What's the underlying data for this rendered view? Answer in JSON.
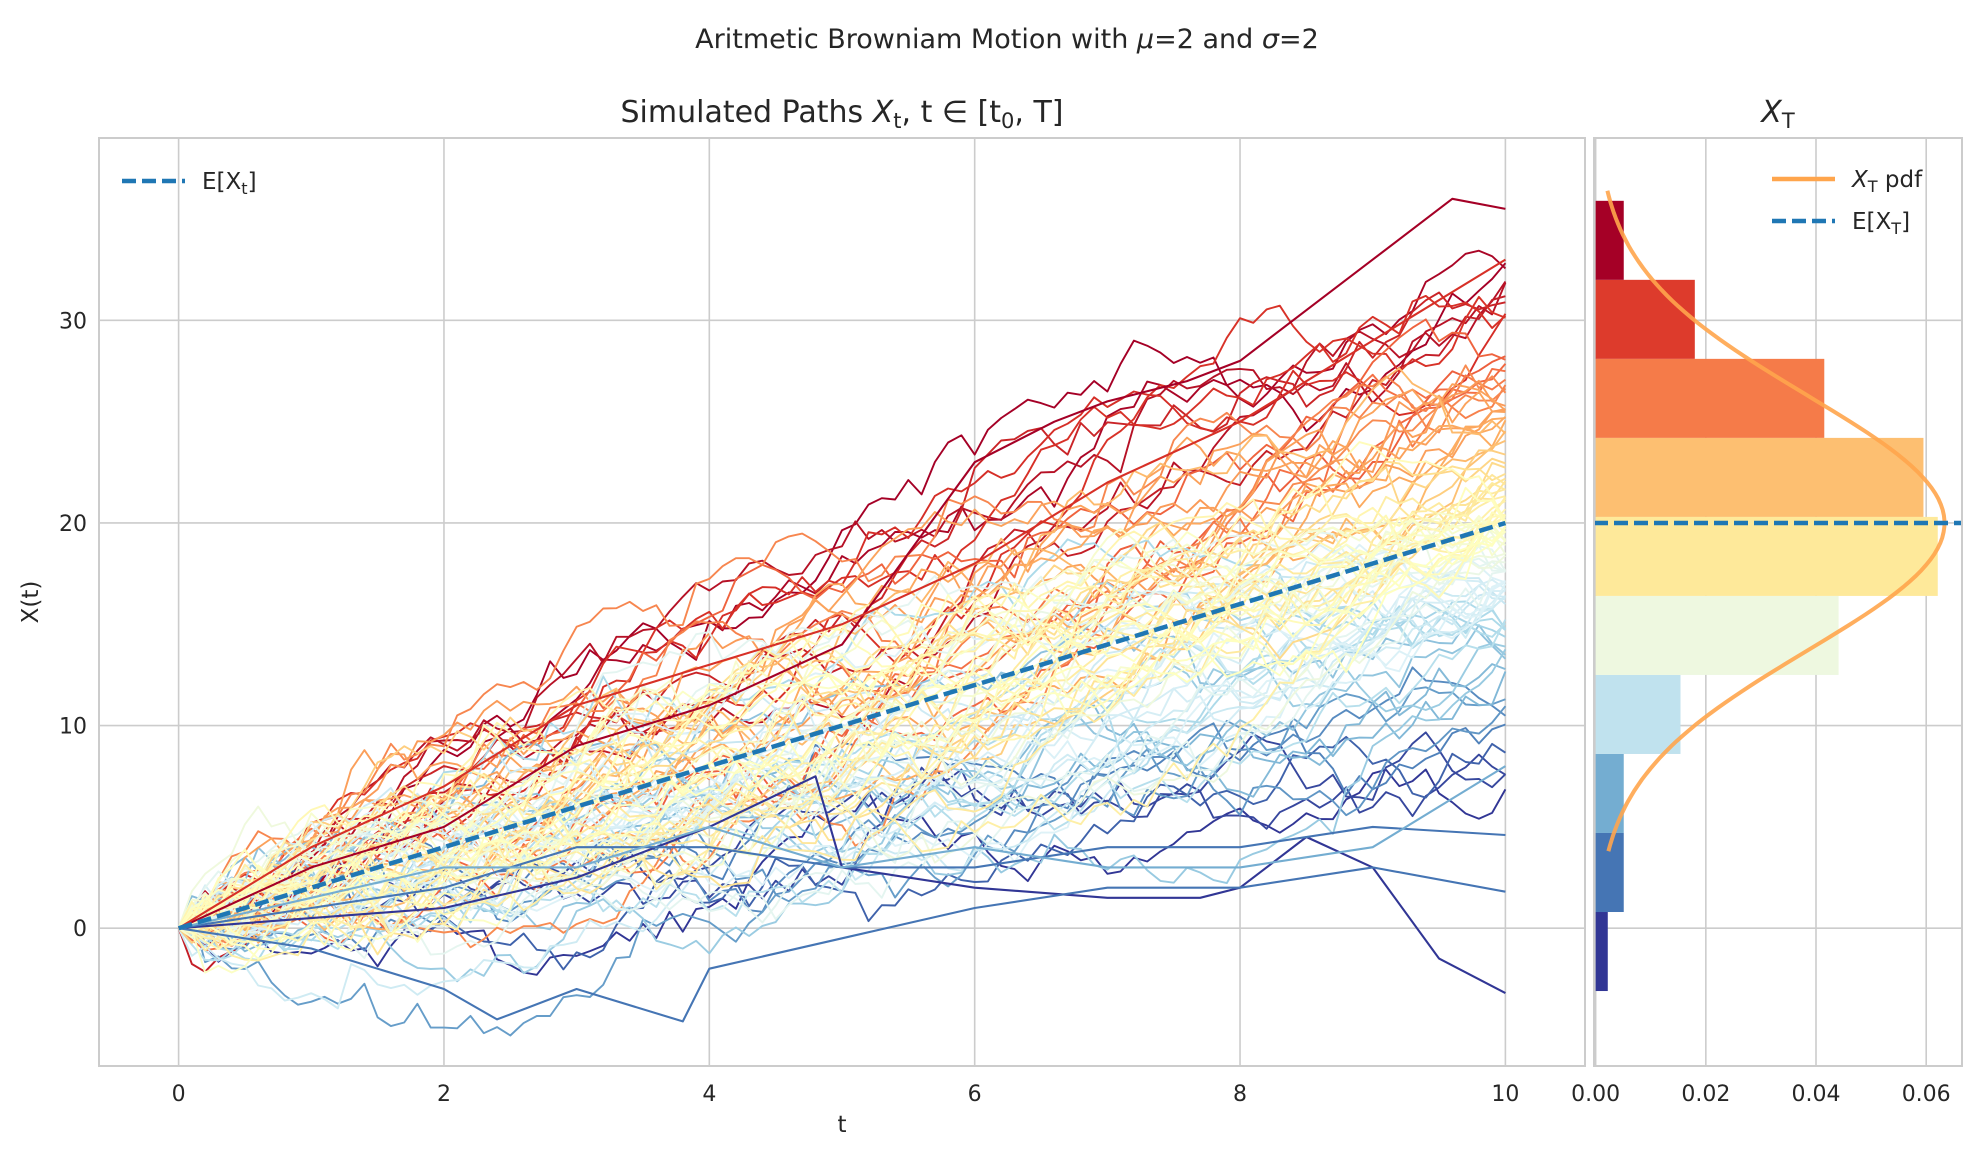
{
  "figure": {
    "suptitle": "Aritmetic Browniam Motion with μ=2 and σ=2"
  },
  "colors": {
    "grid": "#cccccc",
    "frame": "#cccccc",
    "mean_line": "#1f77b4",
    "pdf_line": "#ffa54c",
    "colormap": "RdYlBu_r"
  },
  "chart_data": [
    {
      "type": "line",
      "title": "Simulated Paths X_t, t ∈ [t_0, T]",
      "title_parts": [
        "Simulated Paths ",
        "X",
        "t",
        ", t ∈ [t",
        "0",
        ", T]"
      ],
      "xlabel": "t",
      "ylabel": "X(t)",
      "xlim": [
        -0.6,
        10.6
      ],
      "ylim": [
        -6.8,
        39.0
      ],
      "xticks": [
        0,
        2,
        4,
        6,
        8,
        10
      ],
      "yticks": [
        0,
        10,
        20,
        30
      ],
      "grid": true,
      "legend": {
        "placement": "upper-left",
        "entries": [
          {
            "label_parts": [
              "E[X",
              "t",
              "]"
            ],
            "style": "dashed",
            "color": "#1f77b4"
          }
        ]
      },
      "params": {
        "mu": 2,
        "sigma": 2,
        "t0": 0,
        "T": 10,
        "n_paths": 100,
        "n_steps": 100
      },
      "mean_line": {
        "x": [
          0,
          10
        ],
        "y": [
          0,
          20
        ]
      },
      "highlighted_paths": [
        {
          "name": "highest",
          "color": "#a50026",
          "x": [
            0,
            1,
            2,
            3,
            4,
            5,
            6,
            6.6,
            7,
            7.6,
            8,
            8.6,
            9,
            9.6,
            10
          ],
          "y": [
            0,
            3,
            5,
            9,
            11,
            14,
            23,
            25,
            26,
            27,
            28,
            31,
            33,
            36,
            35.5
          ]
        },
        {
          "name": "high-2",
          "color": "#d73027",
          "x": [
            0,
            1,
            2,
            3,
            4,
            5,
            6,
            7,
            8,
            9,
            10
          ],
          "y": [
            0,
            4,
            7,
            11,
            13,
            15,
            18,
            22,
            25,
            29,
            33
          ]
        },
        {
          "name": "low-1",
          "color": "#313695",
          "x": [
            0,
            1,
            2,
            3,
            4,
            4.8,
            5,
            6,
            7,
            7.7,
            8,
            8.5,
            9,
            9.5,
            10
          ],
          "y": [
            0,
            0.5,
            1,
            2.5,
            5,
            7.5,
            3,
            2,
            1.5,
            1.5,
            2,
            4.5,
            3,
            -1.5,
            -3.2
          ]
        },
        {
          "name": "low-2",
          "color": "#4575b4",
          "x": [
            0,
            1,
            2,
            2.4,
            3,
            3.8,
            4,
            5,
            6,
            7,
            8,
            9,
            10
          ],
          "y": [
            0,
            -1,
            -3,
            -4.5,
            -3,
            -4.6,
            -2,
            -0.5,
            1,
            2,
            2,
            3,
            1.8
          ]
        },
        {
          "name": "low-3",
          "color": "#4575b4",
          "x": [
            0,
            1,
            2,
            3,
            4,
            5,
            6,
            7,
            8,
            9,
            10
          ],
          "y": [
            0,
            1,
            2,
            4,
            4,
            3,
            3,
            4,
            4,
            5,
            4.6
          ]
        },
        {
          "name": "low-4",
          "color": "#74add1",
          "x": [
            0,
            1,
            2,
            3,
            4,
            5,
            6,
            7,
            8,
            9,
            10
          ],
          "y": [
            0,
            1.5,
            3,
            3,
            5,
            3,
            4,
            3,
            3,
            4,
            8
          ]
        }
      ]
    },
    {
      "type": "bar",
      "orientation": "horizontal",
      "title": "X_T",
      "title_parts": [
        "X",
        "T"
      ],
      "xlim": [
        -0.0003,
        0.0665
      ],
      "xticks": [
        0.0,
        0.02,
        0.04,
        0.06
      ],
      "xticklabels": [
        "0.00",
        "0.02",
        "0.04",
        "0.06"
      ],
      "ylim": [
        -6.8,
        39.0
      ],
      "shares_y_with": "Simulated Paths",
      "grid": true,
      "legend": {
        "placement": "upper-right",
        "entries": [
          {
            "label_parts": [
              "X",
              "T",
              " pdf"
            ],
            "style": "solid",
            "color": "#ffa54c"
          },
          {
            "label_parts": [
              "E[X",
              "T",
              "]"
            ],
            "style": "dashed",
            "color": "#1f77b4"
          }
        ]
      },
      "bins": [
        {
          "y0": -3.1,
          "y1": 0.8,
          "value": 0.0022,
          "color": "#313695"
        },
        {
          "y0": 0.8,
          "y1": 4.7,
          "value": 0.0051,
          "color": "#4575b4"
        },
        {
          "y0": 4.7,
          "y1": 8.6,
          "value": 0.0051,
          "color": "#74add1"
        },
        {
          "y0": 8.6,
          "y1": 12.5,
          "value": 0.0154,
          "color": "#c0e2ee"
        },
        {
          "y0": 12.5,
          "y1": 16.4,
          "value": 0.0441,
          "color": "#eef8e0"
        },
        {
          "y0": 16.4,
          "y1": 20.3,
          "value": 0.0621,
          "color": "#fee99a"
        },
        {
          "y0": 20.3,
          "y1": 24.2,
          "value": 0.0595,
          "color": "#fdbf71"
        },
        {
          "y0": 24.2,
          "y1": 28.1,
          "value": 0.0415,
          "color": "#f57b49"
        },
        {
          "y0": 28.1,
          "y1": 32.0,
          "value": 0.018,
          "color": "#dd3b2c"
        },
        {
          "y0": 32.0,
          "y1": 35.9,
          "value": 0.0051,
          "color": "#a50026"
        }
      ],
      "pdf": {
        "distribution": "normal",
        "mean": 20,
        "sd": 6.3,
        "y_range": [
          3.8,
          36.4
        ]
      },
      "mean_line": {
        "y": 20
      }
    }
  ]
}
